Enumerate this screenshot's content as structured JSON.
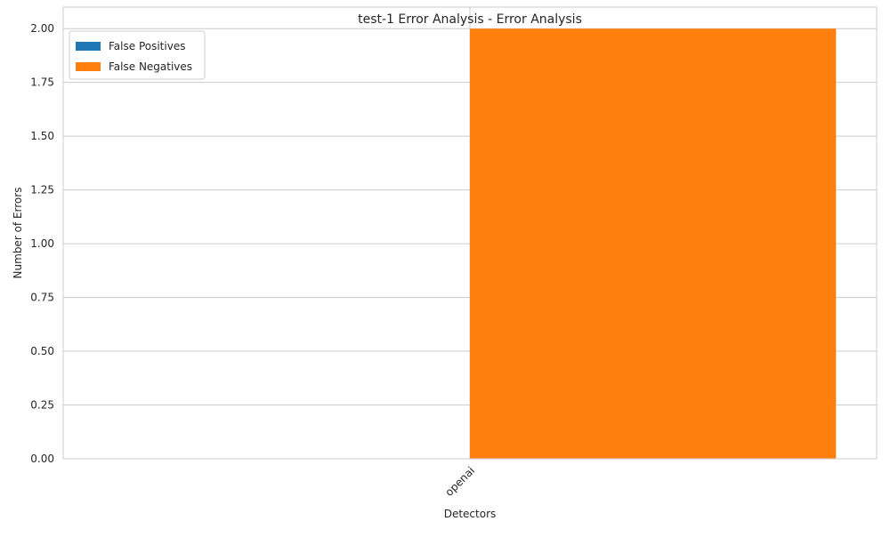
{
  "chart_data": {
    "type": "bar",
    "title": "test-1 Error Analysis - Error Analysis",
    "xlabel": "Detectors",
    "ylabel": "Number of Errors",
    "categories": [
      "openai"
    ],
    "series": [
      {
        "name": "False Positives",
        "values": [
          0
        ],
        "color": "#1f77b4"
      },
      {
        "name": "False Negatives",
        "values": [
          2
        ],
        "color": "#ff7f0e"
      }
    ],
    "ylim": [
      0,
      2.1
    ],
    "yticks": [
      0.0,
      0.25,
      0.5,
      0.75,
      1.0,
      1.25,
      1.5,
      1.75,
      2.0
    ],
    "ytick_labels": [
      "0.00",
      "0.25",
      "0.50",
      "0.75",
      "1.00",
      "1.25",
      "1.50",
      "1.75",
      "2.00"
    ],
    "grid": true,
    "legend_position": "top-left",
    "xtick_rotation": "45"
  }
}
